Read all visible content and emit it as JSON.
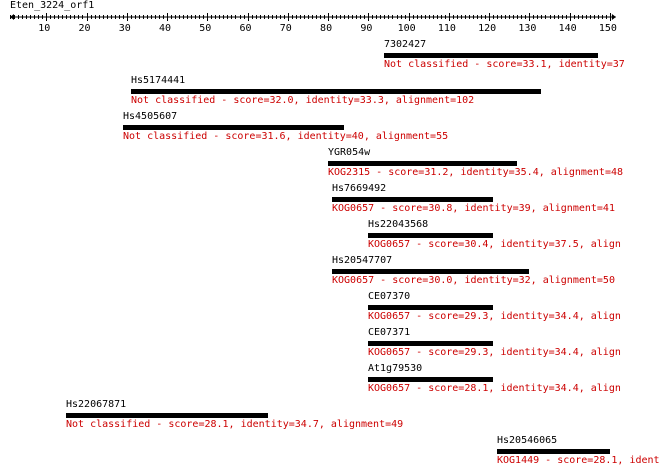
{
  "query": {
    "name": "Eten_3224_orf1",
    "length": 150
  },
  "ruler": {
    "ticks": [
      10,
      20,
      30,
      40,
      50,
      60,
      70,
      80,
      90,
      100,
      110,
      120,
      130,
      140,
      150
    ],
    "tick_labels": [
      "10",
      "20",
      "30",
      "40",
      "50",
      "60",
      "70",
      "80",
      "90",
      "100",
      "110",
      "120",
      "130",
      "140",
      "150"
    ]
  },
  "colors": {
    "text": "#000000",
    "description": "#cc0000",
    "bar": "#000000"
  },
  "hits": [
    {
      "name": "7302427",
      "start": 94,
      "end": 147,
      "description": "Not classified - score=33.1, identity=37"
    },
    {
      "name": "Hs5174441",
      "start": 31,
      "end": 133,
      "description": "Not classified - score=32.0, identity=33.3, alignment=102"
    },
    {
      "name": "Hs4505607",
      "start": 29,
      "end": 84,
      "description": "Not classified - score=31.6, identity=40, alignment=55"
    },
    {
      "name": "YGR054w",
      "start": 80,
      "end": 127,
      "description": "KOG2315 - score=31.2, identity=35.4, alignment=48"
    },
    {
      "name": "Hs7669492",
      "start": 81,
      "end": 121,
      "description": "KOG0657 - score=30.8, identity=39, alignment=41"
    },
    {
      "name": "Hs22043568",
      "start": 90,
      "end": 121,
      "description": "KOG0657 - score=30.4, identity=37.5, align"
    },
    {
      "name": "Hs20547707",
      "start": 81,
      "end": 130,
      "description": "KOG0657 - score=30.0, identity=32, alignment=50"
    },
    {
      "name": "CE07370",
      "start": 90,
      "end": 121,
      "description": "KOG0657 - score=29.3, identity=34.4, align"
    },
    {
      "name": "CE07371",
      "start": 90,
      "end": 121,
      "description": "KOG0657 - score=29.3, identity=34.4, align"
    },
    {
      "name": "At1g79530",
      "start": 90,
      "end": 121,
      "description": "KOG0657 - score=28.1, identity=34.4, align"
    },
    {
      "name": "Hs22067871",
      "start": 15,
      "end": 65,
      "description": "Not classified - score=28.1, identity=34.7, alignment=49"
    },
    {
      "name": "Hs20546065",
      "start": 122,
      "end": 150,
      "description": "KOG1449 - score=28.1, ident"
    }
  ]
}
